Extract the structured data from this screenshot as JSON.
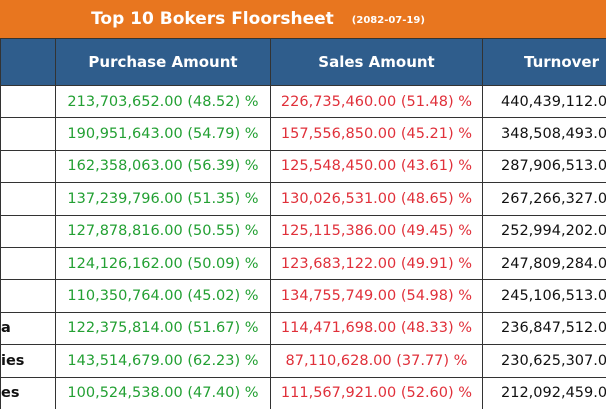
{
  "header": {
    "title": "Top 10 Bokers Floorsheet",
    "date": "(2082-07-19)"
  },
  "table": {
    "columns": [
      "Purchase Amount",
      "Sales Amount",
      "Turnover"
    ],
    "rows": [
      {
        "purchase": "213,703,652.00 (48.52) %",
        "sales": "226,735,460.00 (51.48) %",
        "turnover": "440,439,112.0"
      },
      {
        "purchase": "190,951,643.00 (54.79) %",
        "sales": "157,556,850.00 (45.21) %",
        "turnover": "348,508,493.0"
      },
      {
        "purchase": "162,358,063.00 (56.39) %",
        "sales": "125,548,450.00 (43.61) %",
        "turnover": "287,906,513.0"
      },
      {
        "purchase": "137,239,796.00 (51.35) %",
        "sales": "130,026,531.00 (48.65) %",
        "turnover": "267,266,327.0"
      },
      {
        "purchase": "127,878,816.00 (50.55) %",
        "sales": "125,115,386.00 (49.45) %",
        "turnover": "252,994,202.0"
      },
      {
        "purchase": "124,126,162.00 (50.09) %",
        "sales": "123,683,122.00 (49.91) %",
        "turnover": "247,809,284.0"
      },
      {
        "purchase": "110,350,764.00 (45.02) %",
        "sales": "134,755,749.00 (54.98) %",
        "turnover": "245,106,513.0"
      },
      {
        "broker": "a",
        "purchase": "122,375,814.00 (51.67) %",
        "sales": "114,471,698.00 (48.33) %",
        "turnover": "236,847,512.0"
      },
      {
        "broker": "ies",
        "purchase": "143,514,679.00 (62.23) %",
        "sales": "87,110,628.00 (37.77) %",
        "turnover": "230,625,307.0"
      },
      {
        "broker": "es",
        "purchase": "100,524,538.00 (47.40) %",
        "sales": "111,567,921.00 (52.60) %",
        "turnover": "212,092,459.0"
      }
    ]
  }
}
